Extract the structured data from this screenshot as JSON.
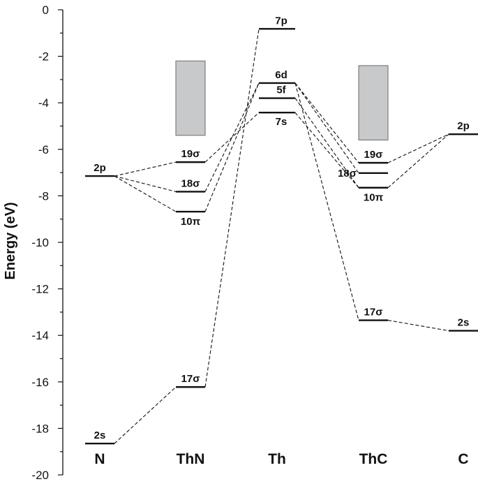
{
  "chart_data": {
    "type": "energy-level-diagram",
    "ylabel": "Energy (eV)",
    "ylim": [
      -20,
      0
    ],
    "yticks": [
      0,
      -2,
      -4,
      -6,
      -8,
      -10,
      -12,
      -14,
      -16,
      -18,
      -20
    ],
    "categories": [
      "N",
      "ThN",
      "Th",
      "ThC",
      "C"
    ],
    "levels": [
      {
        "id": "N_2p",
        "column": "N",
        "label": "2p",
        "energy": -7.15
      },
      {
        "id": "N_2s",
        "column": "N",
        "label": "2s",
        "energy": -18.65
      },
      {
        "id": "ThN_19s",
        "column": "ThN",
        "label": "19σ",
        "energy": -6.55
      },
      {
        "id": "ThN_18s",
        "column": "ThN",
        "label": "18σ",
        "energy": -7.82
      },
      {
        "id": "ThN_10p",
        "column": "ThN",
        "label": "10π",
        "energy": -8.68
      },
      {
        "id": "ThN_17s",
        "column": "ThN",
        "label": "17σ",
        "energy": -16.22
      },
      {
        "id": "Th_7p",
        "column": "Th",
        "label": "7p",
        "energy": -0.82
      },
      {
        "id": "Th_6d",
        "column": "Th",
        "label": "6d",
        "energy": -3.15
      },
      {
        "id": "Th_5f",
        "column": "Th",
        "label": "5f",
        "energy": -3.8
      },
      {
        "id": "Th_7s",
        "column": "Th",
        "label": "7s",
        "energy": -4.42
      },
      {
        "id": "ThC_19s",
        "column": "ThC",
        "label": "19σ",
        "energy": -6.58
      },
      {
        "id": "ThC_18s",
        "column": "ThC",
        "label": "18σ",
        "energy": -7.02
      },
      {
        "id": "ThC_10p",
        "column": "ThC",
        "label": "10π",
        "energy": -7.65
      },
      {
        "id": "ThC_17s",
        "column": "ThC",
        "label": "17σ",
        "energy": -13.35
      },
      {
        "id": "C_2p",
        "column": "C",
        "label": "2p",
        "energy": -5.35
      },
      {
        "id": "C_2s",
        "column": "C",
        "label": "2s",
        "energy": -13.8
      }
    ],
    "correlations": [
      [
        "N_2p",
        "ThN_19s"
      ],
      [
        "N_2p",
        "ThN_18s"
      ],
      [
        "N_2p",
        "ThN_10p"
      ],
      [
        "N_2s",
        "ThN_17s"
      ],
      [
        "ThN_17s",
        "Th_7p"
      ],
      [
        "ThN_19s",
        "Th_7s"
      ],
      [
        "ThN_18s",
        "Th_6d"
      ],
      [
        "ThN_10p",
        "Th_6d"
      ],
      [
        "Th_6d",
        "ThC_19s"
      ],
      [
        "Th_6d",
        "ThC_18s"
      ],
      [
        "Th_5f",
        "ThC_10p"
      ],
      [
        "Th_7s",
        "ThC_10p"
      ],
      [
        "Th_6d",
        "ThC_17s"
      ],
      [
        "ThC_19s",
        "C_2p"
      ],
      [
        "ThC_10p",
        "C_2p"
      ],
      [
        "ThC_17s",
        "C_2s"
      ]
    ],
    "bands": [
      {
        "column": "ThN",
        "energy_top": -2.2,
        "energy_bottom": -5.4
      },
      {
        "column": "ThC",
        "energy_top": -2.4,
        "energy_bottom": -5.6
      }
    ],
    "band_color": "#c8c9cb",
    "line_color": "#111111"
  }
}
